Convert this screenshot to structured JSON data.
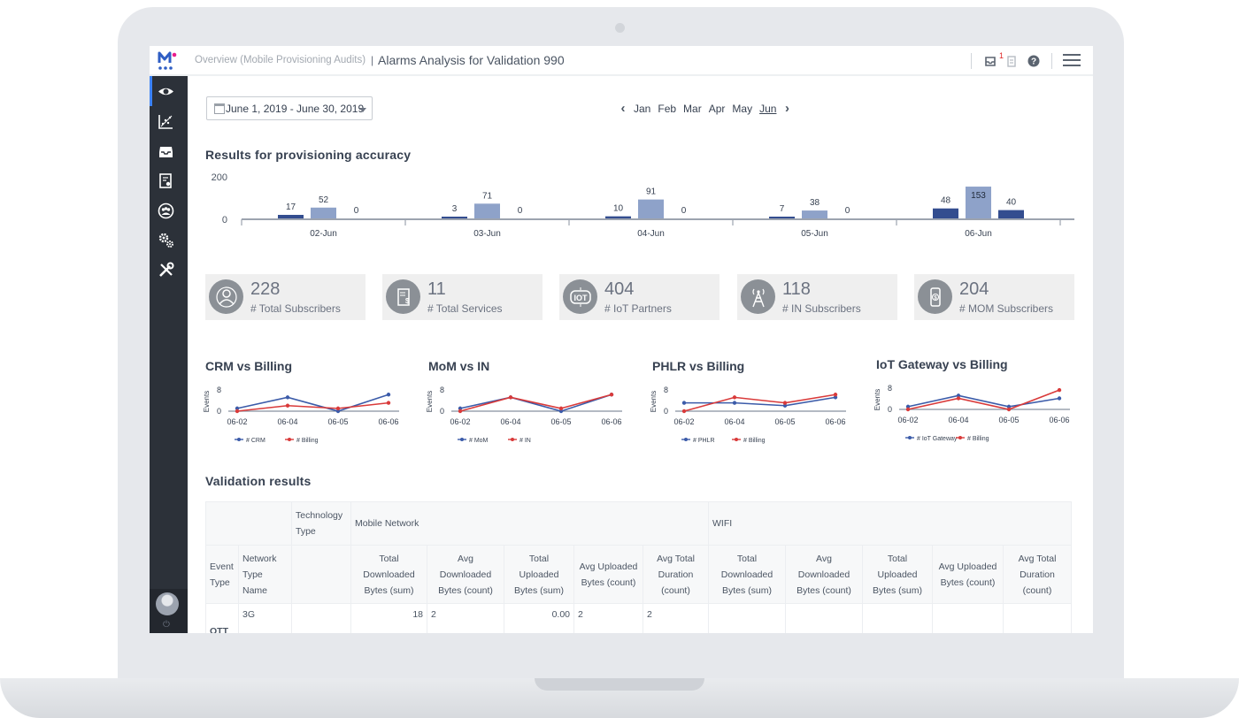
{
  "breadcrumb": {
    "parent": "Overview (Mobile Provisioning Audits)",
    "separator": "|",
    "title": "Alarms Analysis for Validation 990"
  },
  "topbar": {
    "notification_count": "1"
  },
  "date_range": "June 1, 2019 - June 30, 2019",
  "months": [
    "Jan",
    "Feb",
    "Mar",
    "Apr",
    "May",
    "Jun"
  ],
  "active_month": "Jun",
  "accuracy": {
    "title": "Results for provisioning accuracy"
  },
  "chart_data": [
    {
      "type": "bar",
      "title": "Results for provisioning accuracy",
      "categories": [
        "02-Jun",
        "03-Jun",
        "04-Jun",
        "05-Jun",
        "06-Jun"
      ],
      "series": [
        {
          "values": [
            17,
            3,
            10,
            7,
            48
          ]
        },
        {
          "values": [
            52,
            71,
            91,
            38,
            153
          ]
        },
        {
          "values": [
            0,
            0,
            0,
            0,
            40
          ]
        }
      ],
      "ylim": [
        0,
        200
      ],
      "yticks": [
        "200",
        "0"
      ],
      "colors": [
        "#334d8f",
        "#8ea2c9",
        "#334d8f"
      ]
    },
    {
      "type": "line",
      "title": "CRM vs Billing",
      "ylabel": "Events",
      "x": [
        "06-02",
        "06-04",
        "06-05",
        "06-06"
      ],
      "ylim": [
        0,
        8
      ],
      "yticks": [
        "8",
        "0"
      ],
      "series": [
        {
          "name": "# CRM",
          "color": "#3b5ba9",
          "values": [
            1,
            5,
            0,
            6
          ]
        },
        {
          "name": "# Billing",
          "color": "#d93a3a",
          "values": [
            0,
            2,
            1,
            3
          ]
        }
      ]
    },
    {
      "type": "line",
      "title": "MoM vs IN",
      "ylabel": "Events",
      "x": [
        "06-02",
        "06-04",
        "06-05",
        "06-06"
      ],
      "ylim": [
        0,
        8
      ],
      "yticks": [
        "8",
        "0"
      ],
      "series": [
        {
          "name": "# MoM",
          "color": "#3b5ba9",
          "values": [
            1,
            5,
            0,
            6
          ]
        },
        {
          "name": "# IN",
          "color": "#d93a3a",
          "values": [
            0,
            5,
            1,
            6
          ]
        }
      ]
    },
    {
      "type": "line",
      "title": "PHLR vs Billing",
      "ylabel": "Events",
      "x": [
        "06-02",
        "06-04",
        "06-05",
        "06-06"
      ],
      "ylim": [
        0,
        8
      ],
      "yticks": [
        "8",
        "0"
      ],
      "series": [
        {
          "name": "# PHLR",
          "color": "#3b5ba9",
          "values": [
            3,
            3,
            2,
            5
          ]
        },
        {
          "name": "# Billing",
          "color": "#d93a3a",
          "values": [
            0,
            5,
            3,
            6
          ]
        }
      ]
    },
    {
      "type": "line",
      "title": "IoT Gateway vs Billing",
      "ylabel": "Events",
      "x": [
        "06-02",
        "06-04",
        "06-05",
        "06-06"
      ],
      "ylim": [
        0,
        8
      ],
      "yticks": [
        "8",
        "0"
      ],
      "series": [
        {
          "name": "# IoT Gateway",
          "color": "#3b5ba9",
          "values": [
            1,
            5,
            1,
            4
          ]
        },
        {
          "name": "# Billing",
          "color": "#d93a3a",
          "values": [
            0,
            4,
            0,
            7
          ]
        }
      ]
    }
  ],
  "kpis": [
    {
      "value": "228",
      "label": "# Total Subscribers",
      "icon": "users-icon"
    },
    {
      "value": "11",
      "label": "# Total Services",
      "icon": "services-document-icon"
    },
    {
      "value": "404",
      "label": "# IoT Partners",
      "icon": "iot-icon"
    },
    {
      "value": "118",
      "label": "# IN Subscribers",
      "icon": "antenna-tower-icon"
    },
    {
      "value": "204",
      "label": "# MOM Subscribers",
      "icon": "mobile-money-icon"
    }
  ],
  "validation": {
    "title": "Validation results",
    "tech_type_label": "Technology Type",
    "mobile_network_label": "Mobile Network",
    "wifi_label": "WIFI",
    "event_type_label": "Event Type",
    "network_type_label": "Network Type Name",
    "metric_headers": [
      "Total Downloaded Bytes (sum)",
      "Avg Downloaded Bytes (count)",
      "Total Uploaded Bytes (sum)",
      "Avg Uploaded Bytes (count)",
      "Avg Total Duration (count)",
      "Total Downloaded Bytes (sum)",
      "Avg Downloaded Bytes (count)",
      "Total Uploaded Bytes (sum)",
      "Avg Uploaded Bytes (count)",
      "Avg Total Duration (count)"
    ],
    "rows": [
      {
        "event_type": "OTT",
        "network_type": "3G",
        "cells": [
          "18",
          "2",
          "0.00",
          "2",
          "2",
          "",
          "",
          "",
          "",
          ""
        ]
      }
    ]
  }
}
